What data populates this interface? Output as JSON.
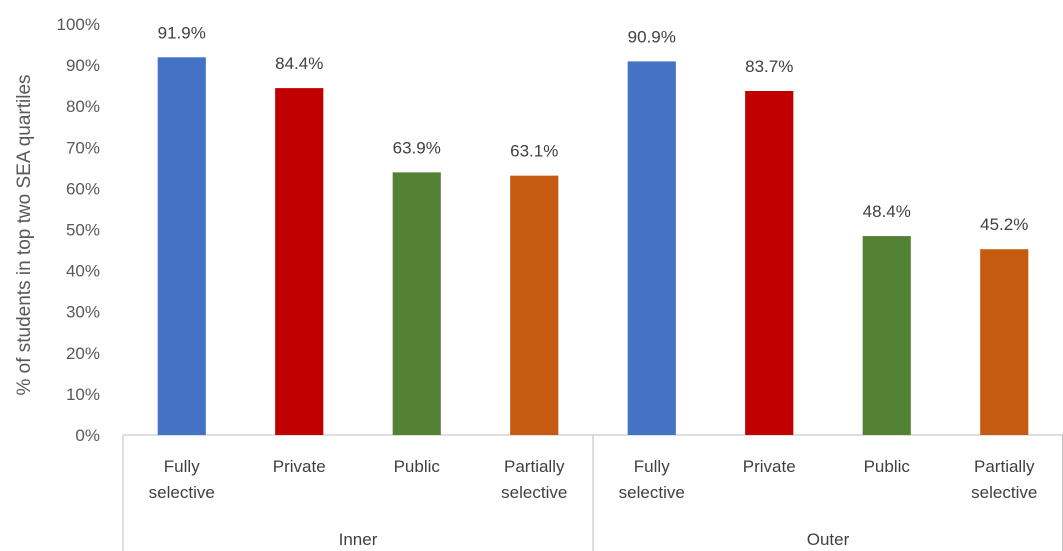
{
  "chart_data": {
    "type": "bar",
    "ylabel": "% of students in top two SEA quartiles",
    "ylim": [
      0,
      100
    ],
    "yticks": [
      "0%",
      "10%",
      "20%",
      "30%",
      "40%",
      "50%",
      "60%",
      "70%",
      "80%",
      "90%",
      "100%"
    ],
    "grid": false,
    "groups": [
      {
        "name": "Inner",
        "bars": [
          {
            "category": [
              "Fully",
              "selective"
            ],
            "value": 91.9,
            "label": "91.9%",
            "color": "#4472C4"
          },
          {
            "category": [
              "Private"
            ],
            "value": 84.4,
            "label": "84.4%",
            "color": "#C00000"
          },
          {
            "category": [
              "Public"
            ],
            "value": 63.9,
            "label": "63.9%",
            "color": "#548235"
          },
          {
            "category": [
              "Partially",
              "selective"
            ],
            "value": 63.1,
            "label": "63.1%",
            "color": "#C55A11"
          }
        ]
      },
      {
        "name": "Outer",
        "bars": [
          {
            "category": [
              "Fully",
              "selective"
            ],
            "value": 90.9,
            "label": "90.9%",
            "color": "#4472C4"
          },
          {
            "category": [
              "Private"
            ],
            "value": 83.7,
            "label": "83.7%",
            "color": "#C00000"
          },
          {
            "category": [
              "Public"
            ],
            "value": 48.4,
            "label": "48.4%",
            "color": "#548235"
          },
          {
            "category": [
              "Partially",
              "selective"
            ],
            "value": 45.2,
            "label": "45.2%",
            "color": "#C55A11"
          }
        ]
      }
    ]
  }
}
